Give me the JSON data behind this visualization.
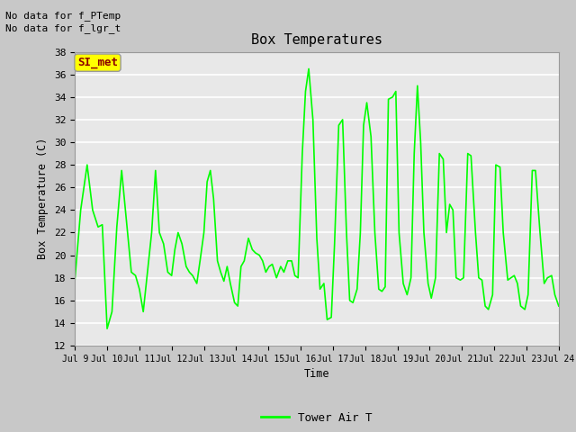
{
  "title": "Box Temperatures",
  "xlabel": "Time",
  "ylabel": "Box Temperature (C)",
  "no_data_text_1": "No data for f_PTemp",
  "no_data_text_2": "No data for f_lgr_t",
  "si_met_label": "SI_met",
  "legend_label": "Tower Air T",
  "ylim": [
    12,
    38
  ],
  "yticks": [
    12,
    14,
    16,
    18,
    20,
    22,
    24,
    26,
    28,
    30,
    32,
    34,
    36,
    38
  ],
  "xtick_labels": [
    "Jul 9",
    "Jul 10",
    "Jul 11",
    "Jul 12",
    "Jul 13",
    "Jul 14",
    "Jul 15",
    "Jul 16",
    "Jul 17",
    "Jul 18",
    "Jul 19",
    "Jul 20",
    "Jul 21",
    "Jul 22",
    "Jul 23",
    "Jul 24"
  ],
  "line_color": "#00FF00",
  "line_width": 1.2,
  "fig_bg_color": "#C8C8C8",
  "plot_bg_color": "#E8E8E8",
  "si_met_bg": "#FFFF00",
  "si_met_fg": "#8B0000",
  "grid_color": "#FFFFFF",
  "x": [
    0.0,
    0.18,
    0.38,
    0.55,
    0.72,
    0.85,
    1.0,
    1.15,
    1.3,
    1.45,
    1.6,
    1.75,
    1.88,
    2.0,
    2.12,
    2.25,
    2.38,
    2.5,
    2.62,
    2.75,
    2.88,
    3.0,
    3.1,
    3.2,
    3.32,
    3.45,
    3.55,
    3.65,
    3.78,
    3.88,
    4.0,
    4.1,
    4.2,
    4.3,
    4.42,
    4.52,
    4.62,
    4.72,
    4.82,
    4.95,
    5.05,
    5.15,
    5.25,
    5.38,
    5.5,
    5.6,
    5.72,
    5.82,
    5.92,
    6.02,
    6.12,
    6.25,
    6.38,
    6.48,
    6.6,
    6.72,
    6.82,
    6.92,
    7.05,
    7.15,
    7.25,
    7.38,
    7.5,
    7.6,
    7.72,
    7.82,
    7.95,
    8.05,
    8.18,
    8.3,
    8.42,
    8.52,
    8.62,
    8.75,
    8.85,
    8.95,
    9.05,
    9.18,
    9.3,
    9.42,
    9.52,
    9.62,
    9.72,
    9.85,
    9.95,
    10.05,
    10.18,
    10.3,
    10.42,
    10.52,
    10.62,
    10.72,
    10.82,
    10.95,
    11.05,
    11.18,
    11.3,
    11.42,
    11.52,
    11.62,
    11.72,
    11.82,
    11.95,
    12.05,
    12.18,
    12.28,
    12.42,
    12.52,
    12.62,
    12.72,
    12.82,
    12.95,
    13.05,
    13.18,
    13.28,
    13.42,
    13.52,
    13.62,
    13.72,
    13.82,
    13.95,
    14.05,
    14.18,
    14.28,
    14.42,
    14.55,
    14.65,
    14.78,
    14.88,
    15.0
  ],
  "y": [
    17.8,
    24.0,
    28.0,
    24.0,
    22.5,
    22.7,
    13.5,
    15.0,
    22.5,
    27.5,
    23.0,
    18.5,
    18.2,
    17.0,
    15.0,
    18.5,
    22.0,
    27.5,
    22.0,
    21.0,
    18.5,
    18.2,
    20.5,
    22.0,
    21.0,
    19.0,
    18.5,
    18.2,
    17.5,
    19.5,
    22.0,
    26.5,
    27.5,
    25.0,
    19.5,
    18.5,
    17.7,
    19.0,
    17.5,
    15.8,
    15.5,
    19.0,
    19.5,
    21.5,
    20.5,
    20.2,
    20.0,
    19.5,
    18.5,
    19.0,
    19.2,
    18.0,
    19.0,
    18.5,
    19.5,
    19.5,
    18.2,
    18.0,
    29.0,
    34.5,
    36.5,
    32.0,
    21.5,
    17.0,
    17.5,
    14.3,
    14.5,
    21.0,
    31.5,
    32.0,
    22.0,
    16.0,
    15.8,
    17.0,
    22.0,
    31.5,
    33.5,
    30.5,
    22.0,
    17.0,
    16.8,
    17.2,
    33.8,
    34.0,
    34.5,
    22.0,
    17.5,
    16.5,
    18.0,
    29.0,
    35.0,
    30.0,
    22.0,
    17.5,
    16.2,
    18.0,
    29.0,
    28.5,
    22.0,
    24.5,
    24.0,
    18.0,
    17.8,
    18.0,
    29.0,
    28.8,
    22.0,
    18.0,
    17.8,
    15.5,
    15.2,
    16.5,
    28.0,
    27.8,
    22.0,
    17.8,
    18.0,
    18.2,
    17.5,
    15.5,
    15.2,
    16.5,
    27.5,
    27.5,
    22.0,
    17.5,
    18.0,
    18.2,
    16.5,
    15.5
  ]
}
